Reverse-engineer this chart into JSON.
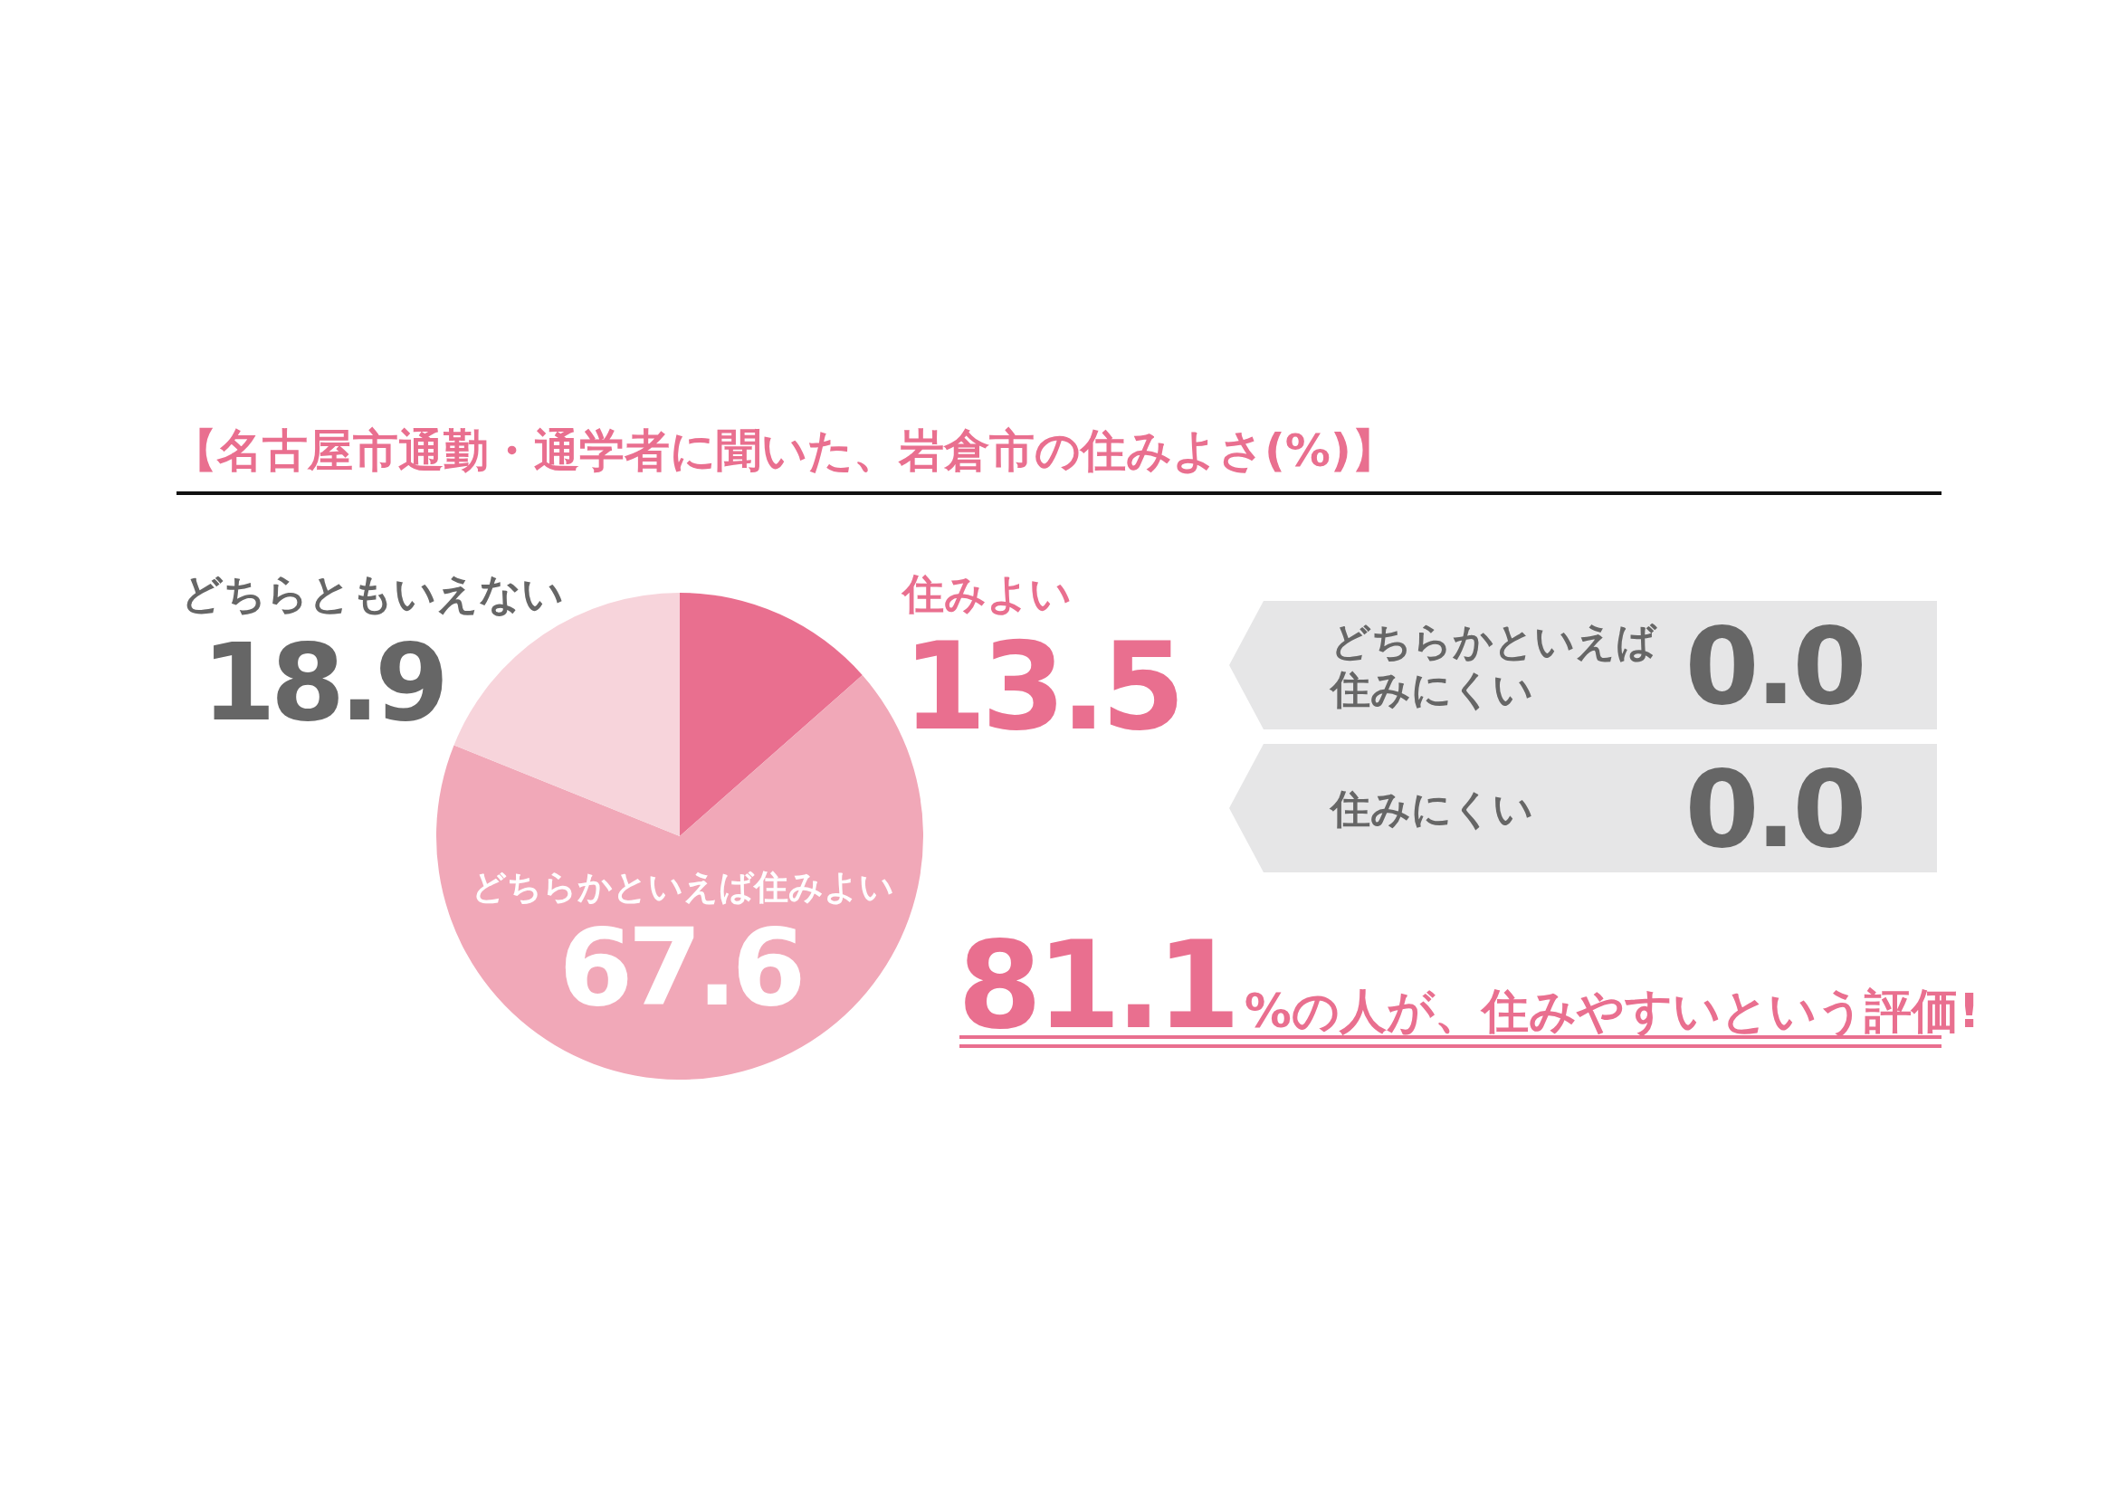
{
  "chart_data": {
    "type": "pie",
    "title": "【名古屋市通勤・通学者に聞いた、岩倉市の住みよさ(%)】",
    "categories": [
      "住みよい",
      "どちらかといえば住みよい",
      "どちらともいえない",
      "どちらかといえば住みにくい",
      "住みにくい"
    ],
    "values": [
      13.5,
      67.6,
      18.9,
      0.0,
      0.0
    ],
    "colors": [
      "#e96f8f",
      "#f1a8b8",
      "#f7d4db",
      "#e6e6e7",
      "#e6e6e7"
    ],
    "value_labels": [
      "13.5",
      "67.6",
      "18.9",
      "0.0",
      "0.0"
    ],
    "annotations": [
      "81.1",
      "%の人が、住みやすいという評価!"
    ]
  }
}
